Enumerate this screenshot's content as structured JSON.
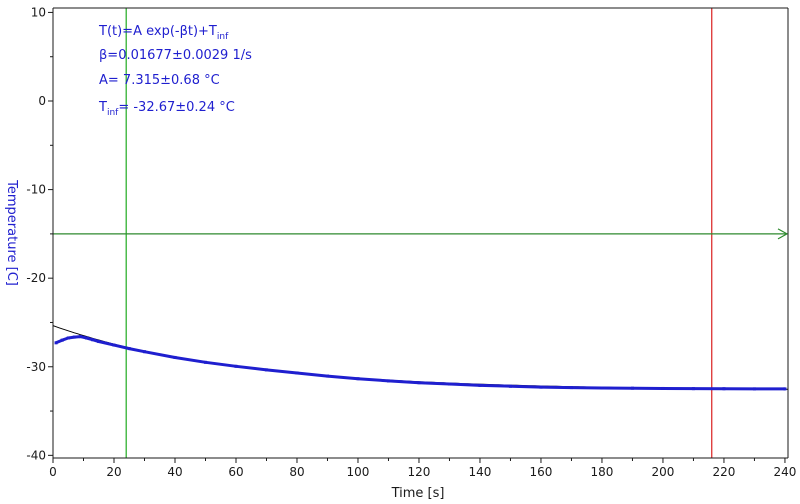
{
  "chart_data": {
    "type": "line",
    "xlabel": "Time [s]",
    "ylabel": "Temperature [C]",
    "xlim": [
      0,
      241
    ],
    "ylim": [
      -40.3,
      10.5
    ],
    "x_ticks": [
      0,
      20,
      40,
      60,
      80,
      100,
      120,
      140,
      160,
      180,
      200,
      220,
      240
    ],
    "y_ticks": [
      10,
      0,
      -10,
      -20,
      -30,
      -40
    ],
    "grid": false,
    "annotation": {
      "formula_main": "T(t)=A exp(-βt)+T",
      "formula_sub": "inf",
      "beta": "β=0.01677±0.0029 1/s",
      "amplitude": "A= 7.315±0.68 °C",
      "tinf_main": "T",
      "tinf_sub": "inf",
      "tinf_value": "= -32.67±0.24 °C"
    },
    "fit": {
      "model": "A*exp(-beta*t)+T_inf",
      "A": 7.315,
      "beta": 0.01677,
      "T_inf": -32.67,
      "x_range": [
        0,
        241
      ]
    },
    "measured_series": {
      "x": [
        1,
        3,
        5,
        7,
        9,
        11,
        13,
        15,
        20,
        25,
        30,
        40,
        50,
        60,
        70,
        80,
        90,
        100,
        110,
        120,
        130,
        140,
        150,
        160,
        170,
        180,
        190,
        200,
        210,
        220,
        230,
        240
      ],
      "y": [
        -27.3,
        -27.0,
        -26.75,
        -26.65,
        -26.6,
        -26.75,
        -26.95,
        -27.15,
        -27.55,
        -27.95,
        -28.3,
        -28.95,
        -29.5,
        -29.95,
        -30.35,
        -30.7,
        -31.05,
        -31.35,
        -31.6,
        -31.8,
        -31.95,
        -32.1,
        -32.2,
        -32.3,
        -32.35,
        -32.4,
        -32.42,
        -32.45,
        -32.47,
        -32.48,
        -32.5,
        -32.5
      ],
      "color": "#1f1fcf"
    },
    "markers": {
      "vertical_green_x": 24,
      "vertical_red_x": 216,
      "horizontal_green_y": -15
    },
    "colors": {
      "axis_label": "#1f1fcf",
      "axis_line": "#1a1a1a",
      "green": "#1faa1f",
      "dark_green": "#2f8a2f",
      "red": "#d92020",
      "fit_line": "#000000"
    }
  }
}
